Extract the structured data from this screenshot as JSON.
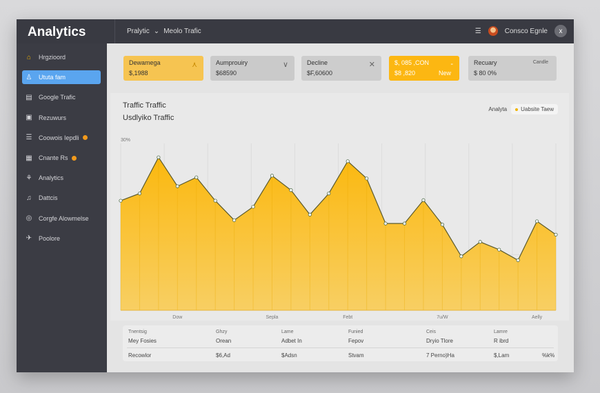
{
  "app": {
    "title": "Analytics",
    "breadcrumb": [
      "Pralytic",
      "Meolo Trafic"
    ],
    "user_name": "Consco Egnle",
    "menu_icon": "hamburger-icon",
    "close_icon": "x"
  },
  "sidebar": {
    "items": [
      {
        "label": "Hrgzioord",
        "icon": "home-icon",
        "glyph": "⌂",
        "active": false,
        "badge": false
      },
      {
        "label": "Ututa fam",
        "icon": "user-icon",
        "glyph": "♙",
        "active": true,
        "badge": false
      },
      {
        "label": "Google Trafic",
        "icon": "building-icon",
        "glyph": "▤",
        "active": false,
        "badge": false
      },
      {
        "label": "Rezuwurs",
        "icon": "document-icon",
        "glyph": "▣",
        "active": false,
        "badge": false
      },
      {
        "label": "Coowois Iepdli",
        "icon": "list-icon",
        "glyph": "☰",
        "active": false,
        "badge": true
      },
      {
        "label": "Cnante Rs",
        "icon": "calendar-icon",
        "glyph": "▦",
        "active": false,
        "badge": true
      },
      {
        "label": "Analytics",
        "icon": "chart-icon",
        "glyph": "⚘",
        "active": false,
        "badge": false
      },
      {
        "label": "Dattcis",
        "icon": "bell-icon",
        "glyph": "♫",
        "active": false,
        "badge": false
      },
      {
        "label": "Corgfe Alowmelse",
        "icon": "settings-icon",
        "glyph": "◎",
        "active": false,
        "badge": false
      },
      {
        "label": "Poolore",
        "icon": "pin-icon",
        "glyph": "✈",
        "active": false,
        "badge": false
      }
    ]
  },
  "cards": [
    {
      "label": "Dewamega",
      "value": "$,1988",
      "icon": "trend-up-icon",
      "glyph": "⋏",
      "bg": "#f6c451"
    },
    {
      "label": "Aumprouiry",
      "value": "$68590",
      "icon": "chevron-down-icon",
      "glyph": "∨",
      "bg": "#cacaca"
    },
    {
      "label": "Decline",
      "value": "$F,60600",
      "icon": "close-icon",
      "glyph": "✕",
      "bg": "#cdcdcd"
    },
    {
      "label": "$, 085 ,CON",
      "value": "$8 ,820",
      "extra": "New",
      "icon": "dash-icon",
      "glyph": "-",
      "bg": "#fcb712"
    },
    {
      "label": "Recuary",
      "value": "$ 80 0%",
      "extra": "Candle",
      "icon": "",
      "glyph": "",
      "bg": "#cdcdcd"
    }
  ],
  "chart_panel": {
    "title": "Traffic Traffic",
    "subtitle": "Usdlyiko Traffic",
    "legend_label": "Analyta",
    "legend_chip": "Uabsite Taew"
  },
  "chart_data": {
    "type": "area",
    "y_tick_label": "30%",
    "ylim": [
      0,
      30
    ],
    "grid": true,
    "legend": "top-right",
    "color": "#fbbd1a",
    "x_tick_labels": [
      {
        "label": "Dow",
        "at": 3
      },
      {
        "label": "Sepla",
        "at": 8
      },
      {
        "label": "Febt",
        "at": 12
      },
      {
        "label": "7u/W",
        "at": 17
      },
      {
        "label": "Aelly",
        "at": 22
      }
    ],
    "values": [
      19.7,
      21.0,
      27.5,
      22.3,
      23.9,
      19.7,
      16.2,
      18.6,
      24.2,
      21.6,
      17.2,
      21.0,
      26.8,
      23.7,
      15.6,
      15.6,
      19.8,
      15.4,
      9.7,
      12.3,
      10.9,
      9.0,
      16.0,
      13.6
    ]
  },
  "table": {
    "headers": [
      "Tnentsig",
      "Ghzy",
      "Lame",
      "Funied",
      "Ceis",
      "Lamre"
    ],
    "row1": [
      "Mey Fosies",
      "Orean",
      "Adbet In",
      "Fepov",
      "Dryio Tlore",
      "R ibrd"
    ],
    "row2": [
      "Recowlor",
      "$6,Ad",
      "$Adsn",
      "Stvam",
      "7 Perno)Ha",
      "$,Lam",
      "%k%"
    ]
  }
}
